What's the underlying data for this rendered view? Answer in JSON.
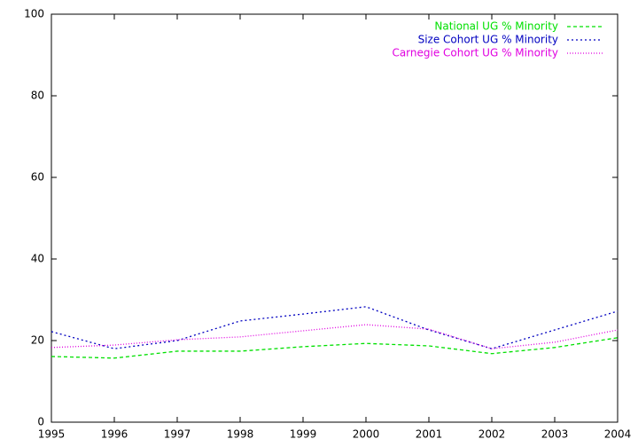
{
  "chart_data": {
    "type": "line",
    "x": [
      1995,
      1996,
      1997,
      1998,
      1999,
      2000,
      2001,
      2002,
      2003,
      2004
    ],
    "series": [
      {
        "name": "National UG % Minority",
        "color": "#00e000",
        "dash": "4,3",
        "values": [
          16.1,
          15.7,
          17.4,
          17.4,
          18.5,
          19.3,
          18.7,
          16.8,
          18.3,
          20.7
        ]
      },
      {
        "name": "Size Cohort UG % Minority",
        "color": "#0000c0",
        "dash": "2,3",
        "values": [
          22.2,
          18.0,
          20.0,
          24.8,
          26.5,
          28.3,
          22.6,
          18.0,
          22.6,
          27.2
        ]
      },
      {
        "name": "Carnegie Cohort UG % Minority",
        "color": "#e000e0",
        "dash": "1,2",
        "values": [
          18.3,
          18.9,
          20.2,
          20.9,
          22.4,
          23.9,
          22.8,
          18.0,
          19.6,
          22.6
        ]
      }
    ],
    "xlim": [
      1995,
      2004
    ],
    "xticks": [
      1995,
      1996,
      1997,
      1998,
      1999,
      2000,
      2001,
      2002,
      2003,
      2004
    ],
    "ylim": [
      0,
      100
    ],
    "yticks": [
      0,
      20,
      40,
      60,
      80,
      100
    ],
    "legend": "top-right"
  }
}
